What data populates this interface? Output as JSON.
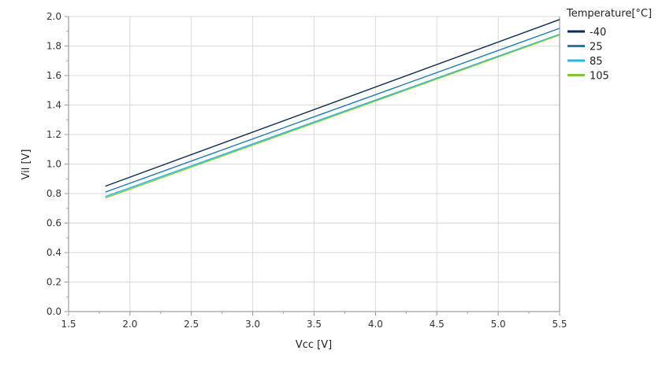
{
  "chart_data": {
    "type": "line",
    "title": "",
    "xlabel": "Vcc [V]",
    "ylabel": "Vil [V]",
    "xlim": [
      1.5,
      5.5
    ],
    "ylim": [
      0.0,
      2.0
    ],
    "x_ticks": [
      "1.5",
      "2.0",
      "2.5",
      "3.0",
      "3.5",
      "4.0",
      "4.5",
      "5.0",
      "5.5"
    ],
    "y_ticks": [
      "0.0",
      "0.2",
      "0.4",
      "0.6",
      "0.8",
      "1.0",
      "1.2",
      "1.4",
      "1.6",
      "1.8",
      "2.0"
    ],
    "x_tick_values": [
      1.5,
      2.0,
      2.5,
      3.0,
      3.5,
      4.0,
      4.5,
      5.0,
      5.5
    ],
    "y_tick_values": [
      0.0,
      0.2,
      0.4,
      0.6,
      0.8,
      1.0,
      1.2,
      1.4,
      1.6,
      1.8,
      2.0
    ],
    "grid": true,
    "legend_title": "Temperature[°C]",
    "legend_position": "top-right outside",
    "series": [
      {
        "name": "-40",
        "color": "#0d2c4f",
        "x": [
          1.8,
          5.5
        ],
        "y": [
          0.85,
          1.98
        ]
      },
      {
        "name": "25",
        "color": "#1f77b4",
        "x": [
          1.8,
          5.5
        ],
        "y": [
          0.81,
          1.92
        ]
      },
      {
        "name": "85",
        "color": "#29b6e8",
        "x": [
          1.8,
          5.5
        ],
        "y": [
          0.78,
          1.88
        ]
      },
      {
        "name": "105",
        "color": "#7ec83a",
        "x": [
          1.8,
          5.5
        ],
        "y": [
          0.77,
          1.875
        ]
      }
    ]
  }
}
